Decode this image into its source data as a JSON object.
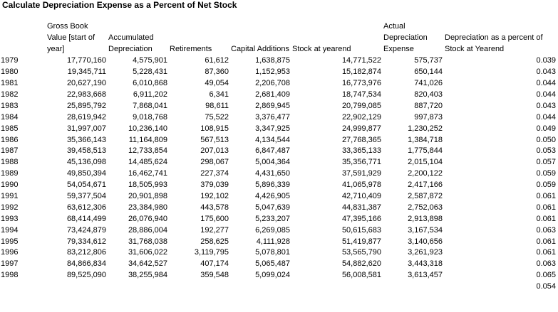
{
  "title": "Calculate Depreciation Expense as a Percent of Net Stock",
  "columns": [
    "",
    "Gross Book Value [start of year]",
    "Accumulated Depreciation",
    "Retirements",
    "Capital Additions",
    "Stock at yearend",
    "Actual Depreciation Expense",
    "Depreciation as a percent of Stock at Yearend"
  ],
  "rows": [
    [
      "1979",
      "17,770,160",
      "4,575,901",
      "61,612",
      "1,638,875",
      "14,771,522",
      "575,737",
      "0.039"
    ],
    [
      "1980",
      "19,345,711",
      "5,228,431",
      "87,360",
      "1,152,953",
      "15,182,874",
      "650,144",
      "0.043"
    ],
    [
      "1981",
      "20,627,190",
      "6,010,868",
      "49,054",
      "2,206,708",
      "16,773,976",
      "741,026",
      "0.044"
    ],
    [
      "1982",
      "22,983,668",
      "6,911,202",
      "6,341",
      "2,681,409",
      "18,747,534",
      "820,403",
      "0.044"
    ],
    [
      "1983",
      "25,895,792",
      "7,868,041",
      "98,611",
      "2,869,945",
      "20,799,085",
      "887,720",
      "0.043"
    ],
    [
      "1984",
      "28,619,942",
      "9,018,768",
      "75,522",
      "3,376,477",
      "22,902,129",
      "997,873",
      "0.044"
    ],
    [
      "1985",
      "31,997,007",
      "10,236,140",
      "108,915",
      "3,347,925",
      "24,999,877",
      "1,230,252",
      "0.049"
    ],
    [
      "1986",
      "35,366,143",
      "11,164,809",
      "567,513",
      "4,134,544",
      "27,768,365",
      "1,384,718",
      "0.050"
    ],
    [
      "1987",
      "39,458,513",
      "12,733,854",
      "207,013",
      "6,847,487",
      "33,365,133",
      "1,775,844",
      "0.053"
    ],
    [
      "1988",
      "45,136,098",
      "14,485,624",
      "298,067",
      "5,004,364",
      "35,356,771",
      "2,015,104",
      "0.057"
    ],
    [
      "1989",
      "49,850,394",
      "16,462,741",
      "227,374",
      "4,431,650",
      "37,591,929",
      "2,200,122",
      "0.059"
    ],
    [
      "1990",
      "54,054,671",
      "18,505,993",
      "379,039",
      "5,896,339",
      "41,065,978",
      "2,417,166",
      "0.059"
    ],
    [
      "1991",
      "59,377,504",
      "20,901,898",
      "192,102",
      "4,426,905",
      "42,710,409",
      "2,587,872",
      "0.061"
    ],
    [
      "1992",
      "63,612,306",
      "23,384,980",
      "443,578",
      "5,047,639",
      "44,831,387",
      "2,752,063",
      "0.061"
    ],
    [
      "1993",
      "68,414,499",
      "26,076,940",
      "175,600",
      "5,233,207",
      "47,395,166",
      "2,913,898",
      "0.061"
    ],
    [
      "1994",
      "73,424,879",
      "28,886,004",
      "192,277",
      "6,269,085",
      "50,615,683",
      "3,167,534",
      "0.063"
    ],
    [
      "1995",
      "79,334,612",
      "31,768,038",
      "258,625",
      "4,111,928",
      "51,419,877",
      "3,140,656",
      "0.061"
    ],
    [
      "1996",
      "83,212,806",
      "31,606,022",
      "3,119,795",
      "5,078,801",
      "53,565,790",
      "3,261,923",
      "0.061"
    ],
    [
      "1997",
      "84,866,834",
      "34,642,527",
      "407,174",
      "5,065,487",
      "54,882,620",
      "3,443,318",
      "0.063"
    ],
    [
      "1998",
      "89,525,090",
      "38,255,984",
      "359,548",
      "5,099,024",
      "56,008,581",
      "3,613,457",
      "0.065"
    ],
    [
      "",
      "",
      "",
      "",
      "",
      "",
      "",
      "0.054"
    ]
  ]
}
